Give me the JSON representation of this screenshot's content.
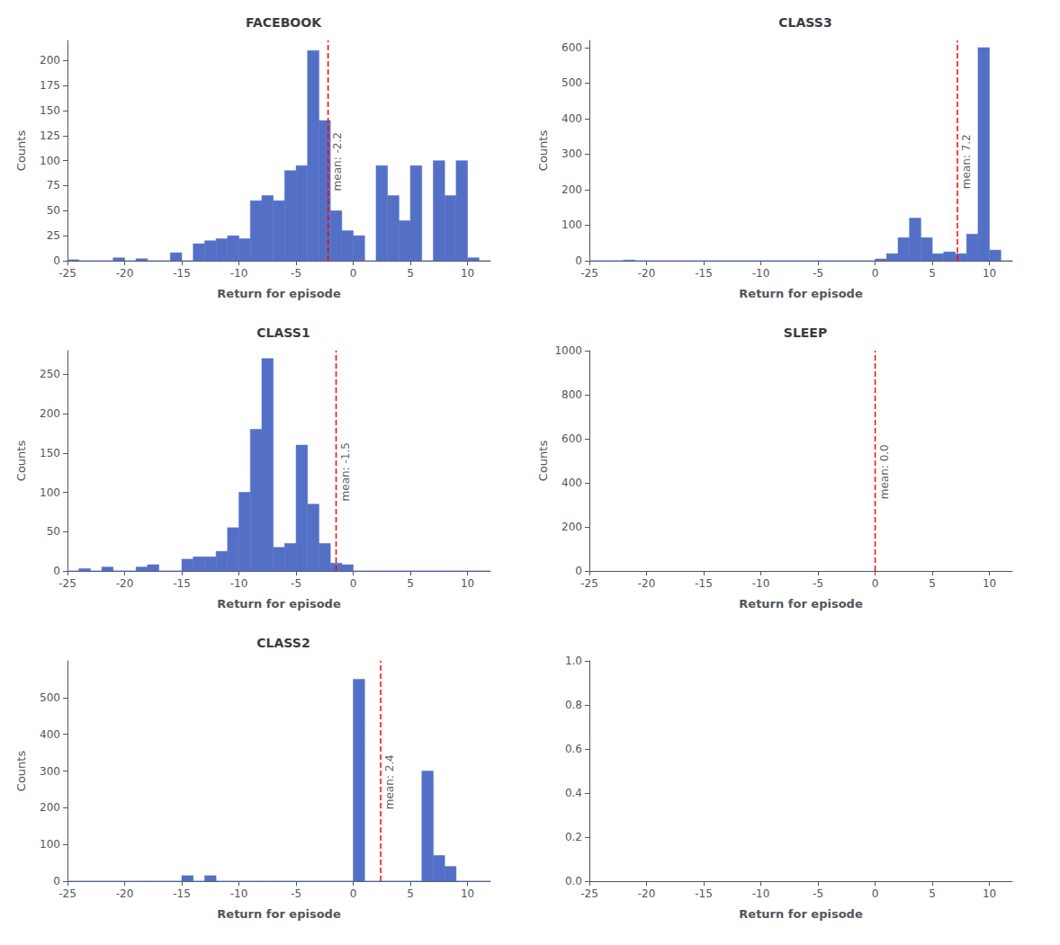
{
  "chart_data": [
    {
      "type": "histogram",
      "title": "FACEBOOK",
      "xlabel": "Return for episode",
      "ylabel": "Counts",
      "bins": [
        -25,
        -24,
        -23,
        -22,
        -21,
        -20,
        -19,
        -18,
        -17,
        -16,
        -15,
        -14,
        -13,
        -12,
        -11,
        -10,
        -9,
        -8,
        -7,
        -6,
        -5,
        -4,
        -3,
        -2,
        -1,
        0,
        1,
        2,
        3,
        4,
        5,
        6,
        7,
        8,
        9,
        10,
        11,
        12
      ],
      "values": [
        1,
        0,
        0,
        0,
        3,
        0,
        2,
        0,
        0,
        8,
        0,
        17,
        20,
        22,
        25,
        22,
        60,
        65,
        60,
        90,
        95,
        210,
        140,
        50,
        30,
        25,
        0,
        95,
        65,
        40,
        95,
        0,
        100,
        65,
        100,
        3,
        0
      ],
      "annotations": [
        {
          "x": -2.2,
          "text": "mean: -2.2",
          "color": "red",
          "line_style": "dashed"
        }
      ],
      "xlim": [
        -25,
        12
      ],
      "xticks": [
        -25,
        -20,
        -15,
        -10,
        -5,
        0,
        5,
        10
      ],
      "ylim": [
        0,
        220
      ],
      "yticks": [
        0,
        25,
        50,
        75,
        100,
        125,
        150,
        175,
        200
      ],
      "grid": false
    },
    {
      "type": "histogram",
      "title": "CLASS3",
      "xlabel": "Return for episode",
      "ylabel": "Counts",
      "bins": [
        -25,
        -24,
        -23,
        -22,
        -21,
        -20,
        -19,
        -18,
        -17,
        -16,
        -15,
        -14,
        -13,
        -12,
        -11,
        -10,
        -9,
        -8,
        -7,
        -6,
        -5,
        -4,
        -3,
        -2,
        -1,
        0,
        1,
        2,
        3,
        4,
        5,
        6,
        7,
        8,
        9,
        10,
        11,
        12
      ],
      "values": [
        0,
        0,
        0,
        2,
        0,
        0,
        0,
        0,
        0,
        0,
        0,
        0,
        0,
        0,
        0,
        0,
        0,
        0,
        0,
        0,
        0,
        0,
        0,
        0,
        0,
        5,
        20,
        65,
        120,
        65,
        20,
        25,
        20,
        75,
        600,
        30,
        0
      ],
      "annotations": [
        {
          "x": 7.2,
          "text": "mean: 7.2",
          "color": "red",
          "line_style": "dashed"
        }
      ],
      "xlim": [
        -25,
        12
      ],
      "xticks": [
        -25,
        -20,
        -15,
        -10,
        -5,
        0,
        5,
        10
      ],
      "ylim": [
        0,
        620
      ],
      "yticks": [
        0,
        100,
        200,
        300,
        400,
        500,
        600
      ],
      "grid": false
    },
    {
      "type": "histogram",
      "title": "CLASS1",
      "xlabel": "Return for episode",
      "ylabel": "Counts",
      "bins": [
        -25,
        -24,
        -23,
        -22,
        -21,
        -20,
        -19,
        -18,
        -17,
        -16,
        -15,
        -14,
        -13,
        -12,
        -11,
        -10,
        -9,
        -8,
        -7,
        -6,
        -5,
        -4,
        -3,
        -2,
        -1,
        0,
        1,
        2,
        3,
        4,
        5,
        6,
        7,
        8,
        9,
        10,
        11,
        12
      ],
      "values": [
        0,
        3,
        0,
        5,
        0,
        0,
        5,
        8,
        0,
        0,
        15,
        18,
        18,
        25,
        55,
        100,
        180,
        270,
        30,
        35,
        160,
        85,
        35,
        10,
        8,
        0,
        0,
        0,
        0,
        0,
        0,
        0,
        0,
        0,
        0,
        0,
        0
      ],
      "annotations": [
        {
          "x": -1.5,
          "text": "mean: -1.5",
          "color": "red",
          "line_style": "dashed"
        }
      ],
      "xlim": [
        -25,
        12
      ],
      "xticks": [
        -25,
        -20,
        -15,
        -10,
        -5,
        0,
        5,
        10
      ],
      "ylim": [
        0,
        280
      ],
      "yticks": [
        0,
        50,
        100,
        150,
        200,
        250
      ],
      "grid": false
    },
    {
      "type": "histogram",
      "title": "SLEEP",
      "xlabel": "Return for episode",
      "ylabel": "Counts",
      "annotations": [
        {
          "x": 0.0,
          "text": "mean: 0.0",
          "color": "red",
          "line_style": "dashed"
        }
      ],
      "xlim": [
        -25,
        12
      ],
      "xticks": [
        -25,
        -20,
        -15,
        -10,
        -5,
        0,
        5,
        10
      ],
      "ylim": [
        0,
        1000
      ],
      "yticks": [
        0,
        200,
        400,
        600,
        800,
        1000
      ],
      "grid": false
    },
    {
      "type": "histogram",
      "title": "CLASS2",
      "xlabel": "Return for episode",
      "ylabel": "Counts",
      "bins": [
        -25,
        -24,
        -23,
        -22,
        -21,
        -20,
        -19,
        -18,
        -17,
        -16,
        -15,
        -14,
        -13,
        -12,
        -11,
        -10,
        -9,
        -8,
        -7,
        -6,
        -5,
        -4,
        -3,
        -2,
        -1,
        0,
        1,
        2,
        3,
        4,
        5,
        6,
        7,
        8,
        9,
        10,
        11,
        12
      ],
      "values": [
        0,
        0,
        0,
        0,
        0,
        0,
        0,
        0,
        0,
        0,
        15,
        0,
        15,
        0,
        0,
        0,
        0,
        0,
        0,
        0,
        0,
        0,
        0,
        0,
        0,
        550,
        0,
        0,
        0,
        0,
        0,
        300,
        70,
        40,
        0,
        0,
        0
      ],
      "annotations": [
        {
          "x": 2.4,
          "text": "mean: 2.4",
          "color": "red",
          "line_style": "dashed"
        }
      ],
      "xlim": [
        -25,
        12
      ],
      "xticks": [
        -25,
        -20,
        -15,
        -10,
        -5,
        0,
        5,
        10
      ],
      "ylim": [
        0,
        600
      ],
      "yticks": [
        0,
        100,
        200,
        300,
        400,
        500
      ],
      "grid": false
    },
    {
      "type": "histogram",
      "xlabel": "Return for episode",
      "xlim": [
        -25,
        12
      ],
      "xticks": [
        -25,
        -20,
        -15,
        -10,
        -5,
        0,
        5,
        10
      ],
      "ylim": [
        0,
        1
      ],
      "yticks": [
        {
          "value": 0,
          "label": "0.0"
        },
        0.2,
        0.4,
        0.6,
        0.8,
        {
          "value": 1,
          "label": "1.0"
        }
      ],
      "grid": false
    }
  ]
}
